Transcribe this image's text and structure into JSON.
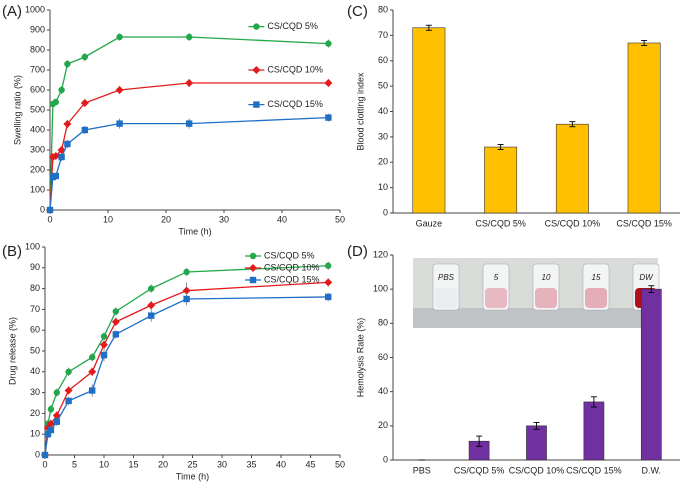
{
  "chart_data": [
    {
      "type": "line",
      "panel": "(A)",
      "x_label": "Time (h)",
      "y_label": "Swelling ratio (%)",
      "x": [
        0,
        0.5,
        1,
        2,
        3,
        6,
        12,
        24,
        48
      ],
      "xlim": [
        0,
        50
      ],
      "xticks": [
        0,
        10,
        20,
        30,
        40,
        50
      ],
      "ylim": [
        0,
        1000
      ],
      "yticks": [
        0,
        100,
        200,
        300,
        400,
        500,
        600,
        700,
        800,
        900,
        1000
      ],
      "legend": "inline",
      "series": [
        {
          "name": "CS/CQD 5%",
          "color": "#22a84a",
          "marker": "circle",
          "values": [
            0,
            530,
            540,
            600,
            730,
            765,
            865,
            865,
            832
          ],
          "errors": [
            0,
            15,
            15,
            20,
            20,
            20,
            18,
            20,
            20
          ]
        },
        {
          "name": "CS/CQD 10%",
          "color": "#e31a1c",
          "marker": "diamond",
          "values": [
            0,
            265,
            270,
            300,
            430,
            535,
            600,
            635,
            635
          ],
          "errors": [
            0,
            15,
            15,
            20,
            20,
            20,
            20,
            20,
            20
          ]
        },
        {
          "name": "CS/CQD 15%",
          "color": "#1f6fc5",
          "marker": "square",
          "values": [
            0,
            165,
            170,
            265,
            330,
            400,
            432,
            432,
            462
          ],
          "errors": [
            0,
            15,
            15,
            20,
            20,
            20,
            25,
            25,
            20
          ]
        }
      ]
    },
    {
      "type": "bar",
      "panel": "(C)",
      "y_label": "Blood clotting index",
      "categories": [
        "Gauze",
        "CS/CQD 5%",
        "CS/CQD 10%",
        "CS/CQD 15%"
      ],
      "ylim": [
        0,
        80
      ],
      "yticks": [
        0,
        10,
        20,
        30,
        40,
        50,
        60,
        70,
        80
      ],
      "color": "#ffc000",
      "values": [
        73,
        26,
        35,
        67
      ],
      "errors": [
        1,
        1,
        1,
        1
      ]
    },
    {
      "type": "line",
      "panel": "(B)",
      "x_label": "Time (h)",
      "y_label": "Drug release (%)",
      "x": [
        0,
        0.5,
        1,
        2,
        4,
        8,
        10,
        12,
        18,
        24,
        48
      ],
      "xlim": [
        0,
        50
      ],
      "xticks": [
        0,
        5,
        10,
        15,
        20,
        25,
        30,
        35,
        40,
        45,
        50
      ],
      "ylim": [
        0,
        100
      ],
      "yticks": [
        0,
        10,
        20,
        30,
        40,
        50,
        60,
        70,
        80,
        90,
        100
      ],
      "legend": "upper right",
      "series": [
        {
          "name": "CS/CQD 5%",
          "color": "#22a84a",
          "marker": "circle",
          "values": [
            0,
            15,
            22,
            30,
            40,
            47,
            57,
            69,
            80,
            88,
            91
          ],
          "errors": [
            0,
            2,
            2,
            2,
            2,
            2,
            2,
            2,
            2,
            2,
            2
          ]
        },
        {
          "name": "CS/CQD 10%",
          "color": "#e31a1c",
          "marker": "diamond",
          "values": [
            0,
            13,
            15,
            19,
            31,
            40,
            53,
            64,
            72,
            79,
            83
          ],
          "errors": [
            0,
            2,
            2,
            2,
            2,
            2,
            2,
            2,
            2,
            4,
            2
          ]
        },
        {
          "name": "CS/CQD 15%",
          "color": "#1f6fc5",
          "marker": "square",
          "values": [
            0,
            10,
            12,
            16,
            26,
            31,
            48,
            58,
            67,
            75,
            76
          ],
          "errors": [
            0,
            2,
            2,
            2,
            2,
            3,
            3,
            2,
            3,
            3,
            2
          ]
        }
      ]
    },
    {
      "type": "bar",
      "panel": "(D)",
      "y_label": "Hemolysis Rate (%)",
      "categories": [
        "PBS",
        "CS/CQD 5%",
        "CS/CQD 10%",
        "CS/CQD 15%",
        "D.W."
      ],
      "ylim": [
        0,
        120
      ],
      "yticks": [
        0,
        20,
        40,
        60,
        80,
        100,
        120
      ],
      "color": "#7030a0",
      "values": [
        0,
        11,
        20,
        34,
        100
      ],
      "errors": [
        0,
        3,
        2,
        3,
        2
      ],
      "photo_labels": [
        "PBS",
        "5",
        "10",
        "15",
        "DW"
      ]
    }
  ]
}
